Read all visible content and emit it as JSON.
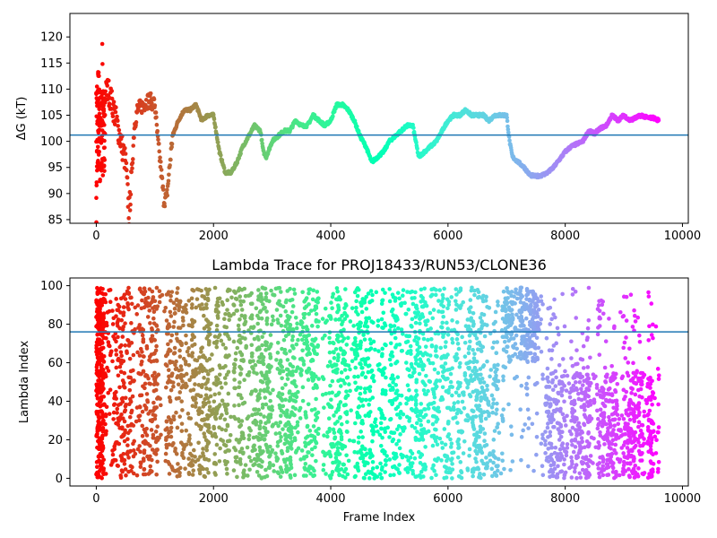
{
  "chart_data": [
    {
      "type": "scatter",
      "title": "",
      "xlabel": "",
      "ylabel": "ΔG (kT)",
      "xlim": [
        -450,
        10100
      ],
      "ylim": [
        84.3,
        124.5
      ],
      "xticks": [
        0,
        2000,
        4000,
        6000,
        8000,
        10000
      ],
      "xtick_labels": [
        "0",
        "2000",
        "4000",
        "6000",
        "8000",
        "10000"
      ],
      "yticks": [
        85,
        90,
        95,
        100,
        105,
        110,
        115,
        120
      ],
      "ytick_labels": [
        "85",
        "90",
        "95",
        "100",
        "105",
        "110",
        "115",
        "120"
      ],
      "hline": 101.2,
      "hline_color": "#1f77b4",
      "colormap": "rainbow (red at start, violet at end)",
      "series": [
        {
          "x": [
            0,
            20,
            40,
            60,
            80,
            100,
            150,
            200,
            300,
            400,
            500,
            560,
            600,
            650,
            700,
            800,
            900,
            1000,
            1050,
            1100,
            1150,
            1200,
            1250,
            1300,
            1400,
            1500,
            1600,
            1700,
            1800,
            1900,
            2000,
            2100,
            2200,
            2250,
            2300,
            2400,
            2500,
            2600,
            2700,
            2800,
            2850,
            2900,
            3000,
            3100,
            3200,
            3300,
            3400,
            3500,
            3600,
            3700,
            3800,
            3900,
            4000,
            4100,
            4200,
            4300,
            4400,
            4500,
            4600,
            4700,
            4800,
            4900,
            5000,
            5100,
            5200,
            5300,
            5400,
            5500,
            5600,
            5700,
            5800,
            5900,
            6000,
            6100,
            6200,
            6300,
            6400,
            6500,
            6600,
            6700,
            6800,
            6900,
            7000,
            7050,
            7100,
            7200,
            7300,
            7400,
            7500,
            7600,
            7700,
            7800,
            7900,
            8000,
            8100,
            8200,
            8300,
            8400,
            8500,
            8600,
            8700,
            8800,
            8900,
            9000,
            9100,
            9200,
            9300,
            9400,
            9500,
            9600
          ],
          "y": [
            100,
            110,
            112,
            105,
            108,
            107,
            109,
            110,
            106,
            101,
            96,
            86,
            93,
            103,
            106,
            107,
            108,
            107,
            100,
            95,
            89,
            89,
            95,
            101,
            104,
            106,
            106,
            107,
            104,
            105,
            105,
            98,
            94,
            94,
            94,
            96,
            99,
            101,
            103,
            102,
            98,
            97,
            100,
            101,
            102,
            102,
            104,
            103,
            103,
            105,
            104,
            103,
            104,
            107,
            107,
            106,
            104,
            101,
            99,
            96,
            97,
            98,
            100,
            101,
            102,
            103,
            103,
            97,
            98,
            99,
            100,
            102,
            104,
            105,
            105,
            106,
            105,
            105,
            105,
            104,
            105,
            105,
            105,
            100,
            97,
            96,
            95,
            93.5,
            93.3,
            93.5,
            94,
            95,
            96.5,
            98,
            99,
            99.5,
            100,
            102,
            101.5,
            102.5,
            103,
            105,
            104,
            105,
            104,
            104.5,
            105,
            104.5,
            104.5,
            104
          ]
        }
      ]
    },
    {
      "type": "scatter",
      "title": "Lambda Trace for PROJ18433/RUN53/CLONE36",
      "xlabel": "Frame Index",
      "ylabel": "Lambda Index",
      "xlim": [
        -450,
        10100
      ],
      "ylim": [
        -4,
        104
      ],
      "xticks": [
        0,
        2000,
        4000,
        6000,
        8000,
        10000
      ],
      "xtick_labels": [
        "0",
        "2000",
        "4000",
        "6000",
        "8000",
        "10000"
      ],
      "yticks": [
        0,
        20,
        40,
        60,
        80,
        100
      ],
      "ytick_labels": [
        "0",
        "20",
        "40",
        "60",
        "80",
        "100"
      ],
      "hline": 76,
      "hline_color": "#1f77b4",
      "colormap": "rainbow (red at start, violet at end)",
      "frames": [
        0,
        9600
      ],
      "lambda_range": [
        0,
        99
      ],
      "gap_columns": [
        [
          1100,
          1180
        ],
        [
          2280,
          2340
        ],
        [
          3800,
          3860
        ],
        [
          4960,
          5000
        ],
        [
          6860,
          6920
        ],
        [
          7620,
          7660
        ]
      ],
      "high_lambda_region": [
        6950,
        7600
      ]
    }
  ]
}
